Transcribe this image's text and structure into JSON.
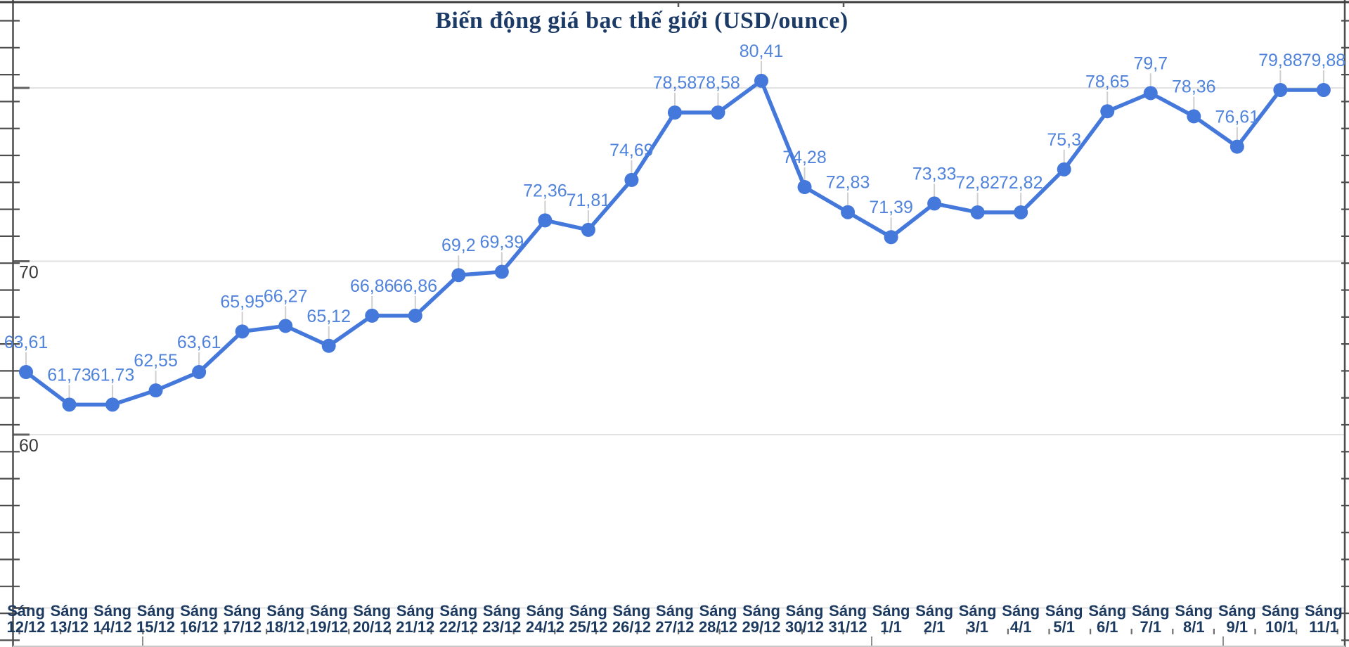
{
  "chart_data": {
    "type": "line",
    "title": "Biến động giá bạc thế giới (USD/ounce)",
    "x_label_prefix": "Sáng",
    "categories": [
      "12/12",
      "13/12",
      "14/12",
      "15/12",
      "16/12",
      "17/12",
      "18/12",
      "19/12",
      "20/12",
      "21/12",
      "22/12",
      "23/12",
      "24/12",
      "25/12",
      "26/12",
      "27/12",
      "28/12",
      "29/12",
      "30/12",
      "31/12",
      "1/1",
      "2/1",
      "3/1",
      "4/1",
      "5/1",
      "6/1",
      "7/1",
      "8/1",
      "9/1",
      "10/1",
      "11/1"
    ],
    "values": [
      63.61,
      61.73,
      61.73,
      62.55,
      63.61,
      65.95,
      66.27,
      65.12,
      66.86,
      66.86,
      69.2,
      69.39,
      72.36,
      71.81,
      74.69,
      78.58,
      78.58,
      80.41,
      74.28,
      72.83,
      71.39,
      73.33,
      72.82,
      72.82,
      75.3,
      78.65,
      79.7,
      78.36,
      76.61,
      79.88,
      79.88
    ],
    "value_labels": [
      "63,61",
      "61,73",
      "61,73",
      "62,55",
      "63,61",
      "65,95",
      "66,27",
      "65,12",
      "66,86",
      "66,86",
      "69,2",
      "69,39",
      "72,36",
      "71,81",
      "74,69",
      "78,58",
      "78,58",
      "80,41",
      "74,28",
      "72,83",
      "71,39",
      "73,33",
      "72,82",
      "72,82",
      "75,3",
      "78,65",
      "79,7",
      "78,36",
      "76,61",
      "79,88",
      "79,88"
    ],
    "y_axis": {
      "tick_labels": [
        {
          "label": "70",
          "value": 70
        },
        {
          "label": "60",
          "value": 60
        }
      ],
      "gridline_values": [
        80,
        70,
        60,
        50
      ],
      "ylim": [
        50,
        85
      ]
    },
    "legend": "none",
    "grid": "horizontal",
    "colors": {
      "line": "#4478da",
      "point": "#4478da",
      "value_label": "#5083dc",
      "x_label": "#1c3a5f",
      "title": "#1c3a66",
      "gridline": "#e2e2e2",
      "axis": "#4d4d4d"
    }
  }
}
